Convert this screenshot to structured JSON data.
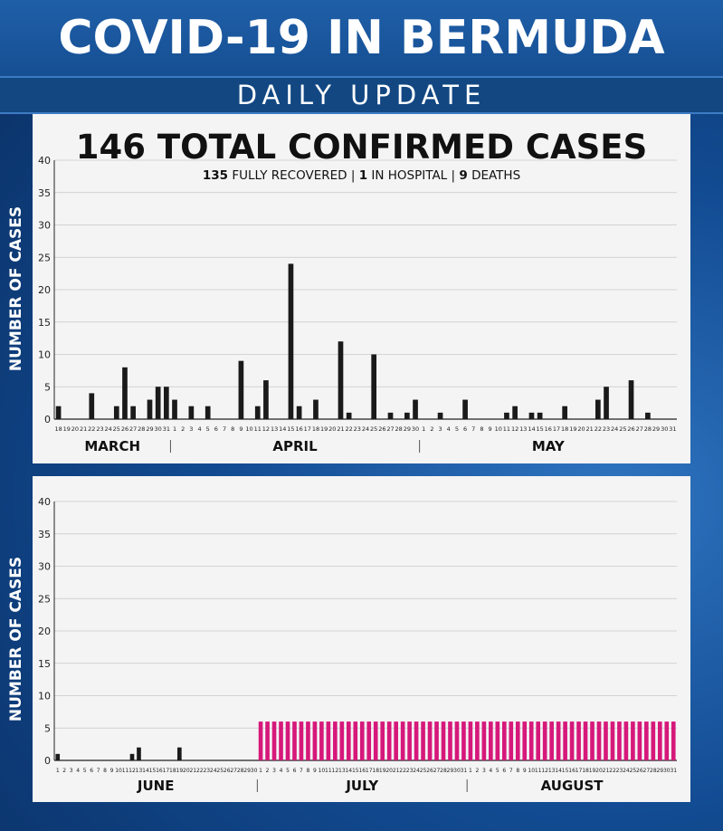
{
  "header": {
    "title": "COVID-19 IN BERMUDA",
    "subtitle": "DAILY UPDATE"
  },
  "summary": {
    "total_cases": "146",
    "total_label": "TOTAL CONFIRMED CASES",
    "recovered_count": "135",
    "recovered_label": "FULLY RECOVERED",
    "hospital_count": "1",
    "hospital_label": "IN HOSPITAL",
    "deaths_count": "9",
    "deaths_label": "DEATHS",
    "separator": "|"
  },
  "colors": {
    "bar": "#1a1a1a",
    "placeholder_bar": "#d6187a",
    "grid": "#c8c8cc",
    "panel": "#f4f4f5"
  },
  "chart_data": [
    {
      "type": "bar",
      "ylabel": "NUMBER OF CASES",
      "ylim": [
        0,
        40
      ],
      "yticks": [
        0,
        5,
        10,
        15,
        20,
        25,
        30,
        35,
        40
      ],
      "grid": true,
      "months": [
        {
          "name": "MARCH",
          "days": [
            18,
            19,
            20,
            21,
            22,
            23,
            24,
            25,
            26,
            27,
            28,
            29,
            30,
            31
          ]
        },
        {
          "name": "APRIL",
          "days": [
            1,
            2,
            3,
            4,
            5,
            6,
            7,
            8,
            9,
            10,
            11,
            12,
            13,
            14,
            15,
            16,
            17,
            18,
            19,
            20,
            21,
            22,
            23,
            24,
            25,
            26,
            27,
            28,
            29,
            30
          ]
        },
        {
          "name": "MAY",
          "days": [
            1,
            2,
            3,
            4,
            5,
            6,
            7,
            8,
            9,
            10,
            11,
            12,
            13,
            14,
            15,
            16,
            17,
            18,
            19,
            20,
            21,
            22,
            23,
            24,
            25,
            26,
            27,
            28,
            29,
            30,
            31
          ]
        }
      ],
      "values": [
        2,
        0,
        0,
        0,
        4,
        0,
        0,
        2,
        8,
        2,
        0,
        3,
        5,
        5,
        3,
        0,
        2,
        0,
        2,
        0,
        0,
        0,
        9,
        0,
        2,
        6,
        0,
        0,
        24,
        2,
        0,
        3,
        0,
        0,
        12,
        1,
        0,
        0,
        10,
        0,
        1,
        0,
        1,
        3,
        0,
        0,
        1,
        0,
        0,
        3,
        0,
        0,
        0,
        0,
        1,
        2,
        0,
        1,
        1,
        0,
        0,
        2,
        0,
        0,
        0,
        3,
        5,
        0,
        0,
        6,
        0,
        1,
        0,
        0,
        0
      ]
    },
    {
      "type": "bar",
      "ylabel": "NUMBER OF CASES",
      "ylim": [
        0,
        40
      ],
      "yticks": [
        0,
        5,
        10,
        15,
        20,
        25,
        30,
        35,
        40
      ],
      "grid": true,
      "months": [
        {
          "name": "JUNE",
          "days": [
            1,
            2,
            3,
            4,
            5,
            6,
            7,
            8,
            9,
            10,
            11,
            12,
            13,
            14,
            15,
            16,
            17,
            18,
            19,
            20,
            21,
            22,
            23,
            24,
            25,
            26,
            27,
            28,
            29,
            30
          ]
        },
        {
          "name": "JULY",
          "days": [
            1,
            2,
            3,
            4,
            5,
            6,
            7,
            8,
            9,
            10,
            11,
            12,
            13,
            14,
            15,
            16,
            17,
            18,
            19,
            20,
            21,
            22,
            23,
            24,
            25,
            26,
            27,
            28,
            29,
            30,
            31
          ]
        },
        {
          "name": "AUGUST",
          "days": [
            1,
            2,
            3,
            4,
            5,
            6,
            7,
            8,
            9,
            10,
            11,
            12,
            13,
            14,
            15,
            16,
            17,
            18,
            19,
            20,
            21,
            22,
            23,
            24,
            25,
            26,
            27,
            28,
            29,
            30,
            31
          ]
        }
      ],
      "values": [
        1,
        0,
        0,
        0,
        0,
        0,
        0,
        0,
        0,
        0,
        0,
        1,
        2,
        0,
        0,
        0,
        0,
        0,
        2,
        0,
        0,
        0,
        0,
        0,
        0,
        0,
        0,
        0,
        0,
        0
      ],
      "placeholder_level": 6
    }
  ]
}
